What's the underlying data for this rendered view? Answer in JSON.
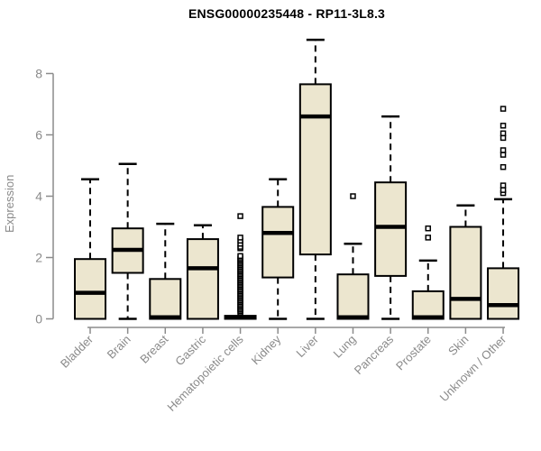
{
  "header": {
    "title": "ENSG00000235448 - RP11-3L8.3"
  },
  "chart_data": {
    "type": "boxplot",
    "title": "ENSG00000235448 - RP11-3L8.3",
    "xlabel": "",
    "ylabel": "Expression",
    "ylim": [
      0,
      8
    ],
    "y_ticks": [
      0,
      2,
      4,
      6,
      8
    ],
    "grid": false,
    "legend": "none",
    "box_fill_color": "#ece6cf",
    "box_border_color": "#000000",
    "axis_color": "#8c8c8c",
    "tick_label_color": "#8a8a8a",
    "title_color": "#000000",
    "categories": [
      "Bladder",
      "Brain",
      "Breast",
      "Gastric",
      "Hematopoietic cells",
      "Kidney",
      "Liver",
      "Lung",
      "Pancreas",
      "Prostate",
      "Skin",
      "Unknown / Other"
    ],
    "series": [
      {
        "name": "Bladder",
        "whisker_low": 0,
        "q1": 0,
        "median": 0.85,
        "q3": 1.95,
        "whisker_high": 4.55,
        "outliers": []
      },
      {
        "name": "Brain",
        "whisker_low": 0,
        "q1": 1.5,
        "median": 2.25,
        "q3": 2.95,
        "whisker_high": 5.05,
        "outliers": []
      },
      {
        "name": "Breast",
        "whisker_low": 0,
        "q1": 0,
        "median": 0.05,
        "q3": 1.3,
        "whisker_high": 3.1,
        "outliers": []
      },
      {
        "name": "Gastric",
        "whisker_low": 0,
        "q1": 0,
        "median": 1.65,
        "q3": 2.6,
        "whisker_high": 3.05,
        "outliers": []
      },
      {
        "name": "Hematopoietic cells",
        "whisker_low": 0,
        "q1": 0,
        "median": 0.04,
        "q3": 0.1,
        "whisker_high": 0.1,
        "outliers": [
          0.2,
          0.25,
          0.3,
          0.35,
          0.4,
          0.45,
          0.5,
          0.55,
          0.6,
          0.65,
          0.7,
          0.75,
          0.8,
          0.85,
          0.9,
          0.95,
          1.0,
          1.05,
          1.1,
          1.15,
          1.2,
          1.25,
          1.3,
          1.35,
          1.4,
          1.45,
          1.5,
          1.55,
          1.6,
          1.65,
          1.7,
          1.75,
          1.8,
          1.85,
          1.9,
          1.95,
          2.0,
          2.05,
          2.3,
          2.35,
          2.45,
          2.55,
          2.65,
          3.35
        ]
      },
      {
        "name": "Kidney",
        "whisker_low": 0,
        "q1": 1.35,
        "median": 2.8,
        "q3": 3.65,
        "whisker_high": 4.55,
        "outliers": []
      },
      {
        "name": "Liver",
        "whisker_low": 0,
        "q1": 2.1,
        "median": 6.6,
        "q3": 7.65,
        "whisker_high": 9.1,
        "outliers": []
      },
      {
        "name": "Lung",
        "whisker_low": 0,
        "q1": 0,
        "median": 0.05,
        "q3": 1.45,
        "whisker_high": 2.45,
        "outliers": [
          4.0
        ]
      },
      {
        "name": "Pancreas",
        "whisker_low": 0,
        "q1": 1.4,
        "median": 3.0,
        "q3": 4.45,
        "whisker_high": 6.6,
        "outliers": []
      },
      {
        "name": "Prostate",
        "whisker_low": 0,
        "q1": 0,
        "median": 0.05,
        "q3": 0.9,
        "whisker_high": 1.9,
        "outliers": [
          2.65,
          2.95
        ]
      },
      {
        "name": "Skin",
        "whisker_low": 0,
        "q1": 0,
        "median": 0.65,
        "q3": 3.0,
        "whisker_high": 3.7,
        "outliers": []
      },
      {
        "name": "Unknown / Other",
        "whisker_low": 0,
        "q1": 0,
        "median": 0.45,
        "q3": 1.65,
        "whisker_high": 3.9,
        "outliers": [
          4.1,
          4.2,
          4.35,
          4.95,
          5.35,
          5.5,
          5.9,
          6.05,
          6.3,
          6.85
        ]
      }
    ]
  }
}
